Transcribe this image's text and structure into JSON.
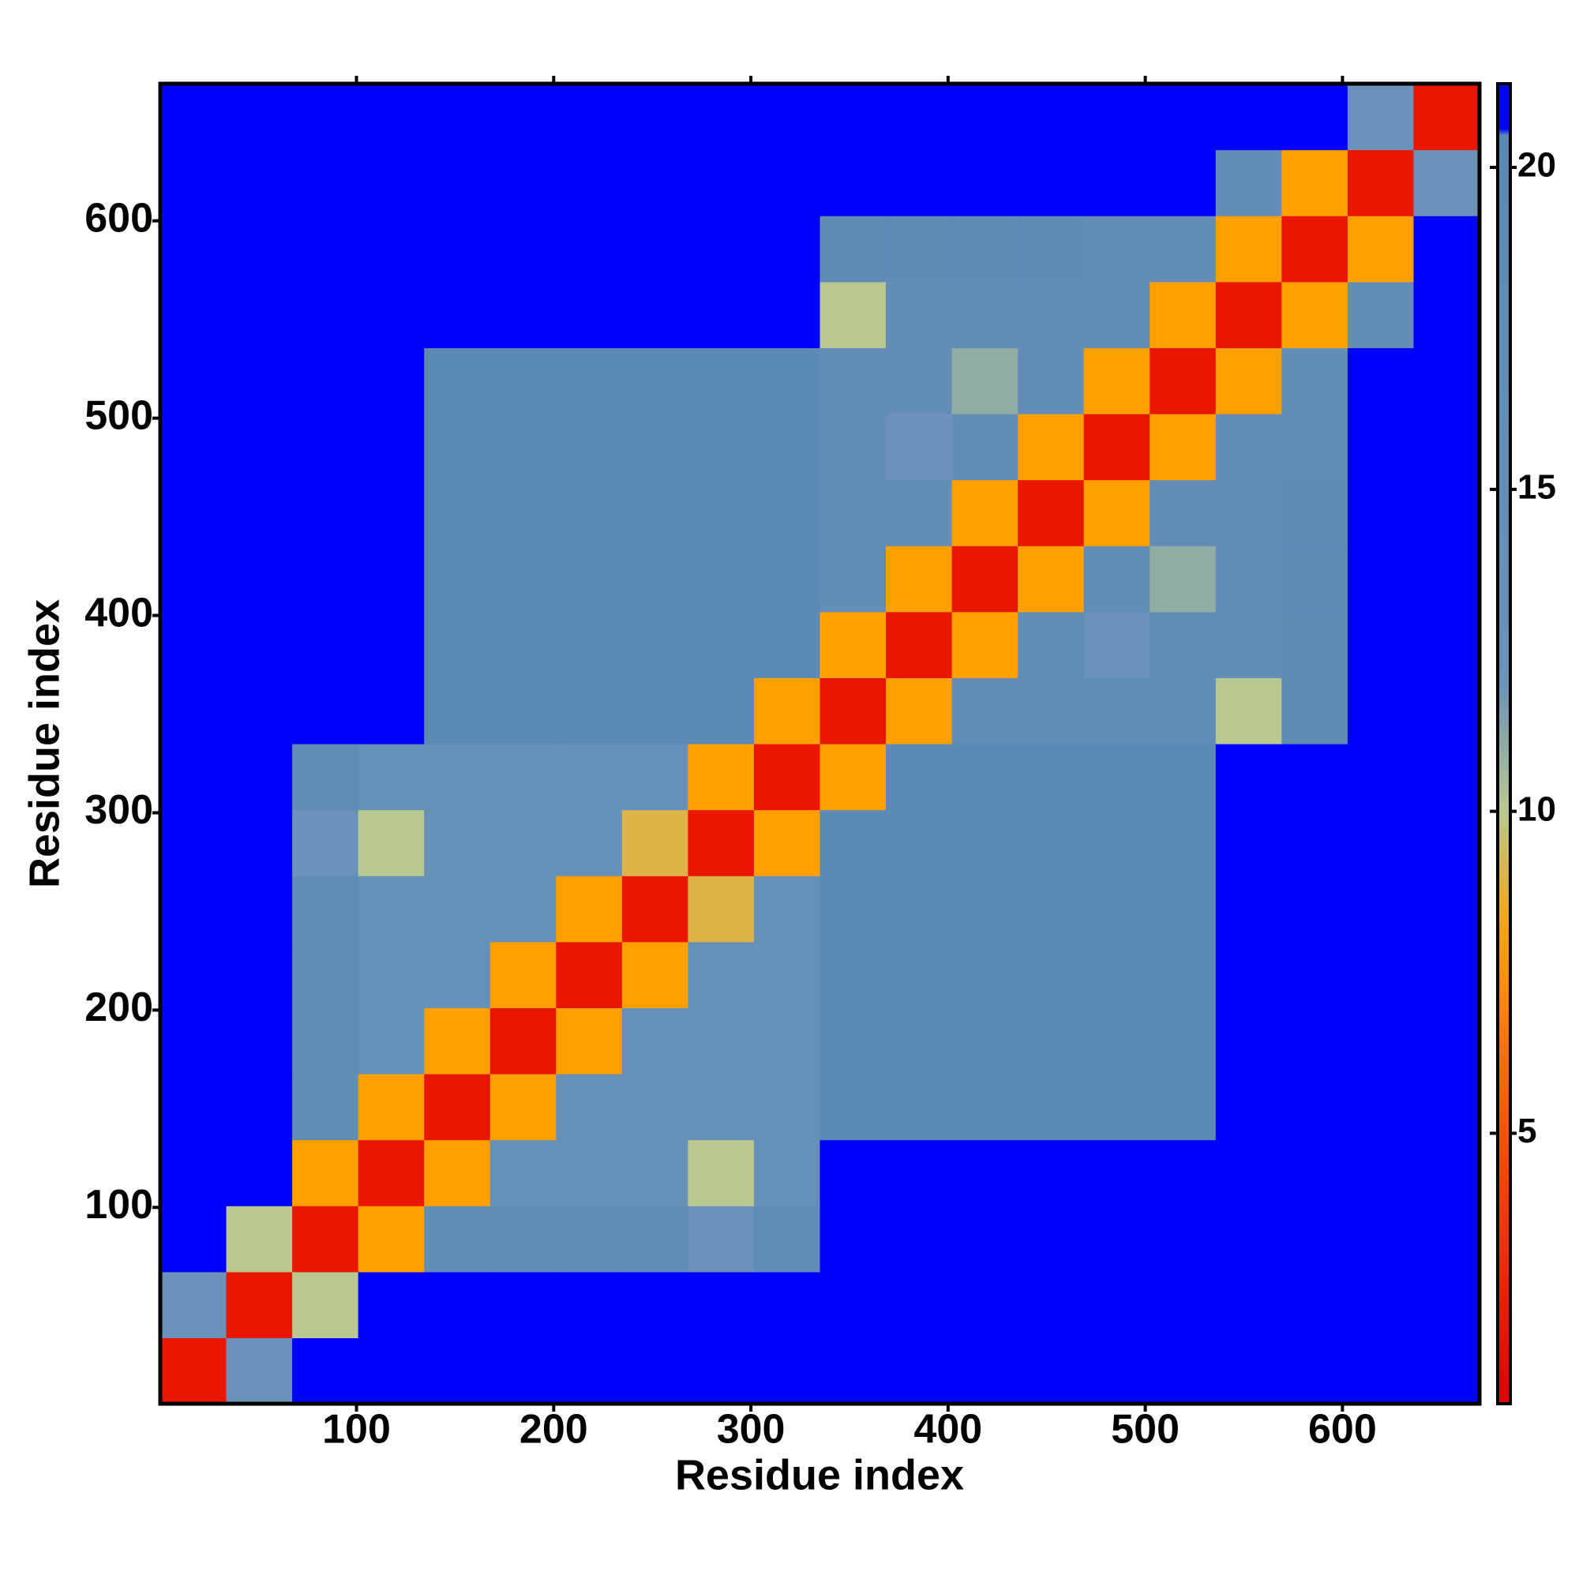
{
  "chart_data": {
    "type": "heatmap",
    "xlabel": "Residue index",
    "ylabel": "Residue index",
    "xlim": [
      0.5,
      669.5
    ],
    "ylim": [
      0.5,
      669.5
    ],
    "xticks": [
      100,
      200,
      300,
      400,
      500,
      600
    ],
    "yticks": [
      100,
      200,
      300,
      400,
      500,
      600
    ],
    "zlim": [
      0.8,
      21.3
    ],
    "zticks": [
      5,
      10,
      15,
      20
    ],
    "colorscale": [
      {
        "value": 0.8,
        "color": "#e00000"
      },
      {
        "value": 5,
        "color": "#ff5000"
      },
      {
        "value": 8,
        "color": "#ffa000"
      },
      {
        "value": 10,
        "color": "#b8c890"
      },
      {
        "value": 12,
        "color": "#6b92b8"
      },
      {
        "value": 20.5,
        "color": "#5a88b4"
      },
      {
        "value": 20.6,
        "color": "#0000ff"
      }
    ],
    "z": [
      [
        2,
        12,
        21,
        21,
        21,
        21,
        21,
        21,
        21,
        21,
        21,
        21,
        21,
        21,
        21,
        21,
        21,
        21,
        21,
        21
      ],
      [
        12,
        2,
        10,
        21,
        21,
        21,
        21,
        21,
        21,
        21,
        21,
        21,
        21,
        21,
        21,
        21,
        21,
        21,
        21,
        21
      ],
      [
        21,
        10,
        2,
        8,
        17,
        17,
        17,
        17,
        12,
        17,
        21,
        21,
        21,
        21,
        21,
        21,
        21,
        21,
        21,
        21
      ],
      [
        21,
        21,
        8,
        2,
        8,
        14,
        14,
        14,
        10,
        14,
        21,
        21,
        21,
        21,
        21,
        21,
        21,
        21,
        21,
        21
      ],
      [
        21,
        21,
        17,
        8,
        2,
        8,
        14,
        14,
        14,
        14,
        19,
        19,
        19,
        19,
        19,
        19,
        21,
        21,
        21,
        21
      ],
      [
        21,
        21,
        17,
        14,
        8,
        2,
        8,
        14,
        14,
        14,
        19,
        19,
        19,
        19,
        19,
        19,
        21,
        21,
        21,
        21
      ],
      [
        21,
        21,
        17,
        14,
        14,
        8,
        2,
        8,
        14,
        14,
        19,
        19,
        19,
        19,
        19,
        19,
        21,
        21,
        21,
        21
      ],
      [
        21,
        21,
        17,
        14,
        14,
        14,
        8,
        2,
        9,
        14,
        19,
        19,
        19,
        19,
        19,
        19,
        21,
        21,
        21,
        21
      ],
      [
        21,
        21,
        12,
        10,
        14,
        14,
        14,
        9,
        2,
        8,
        19,
        19,
        19,
        19,
        19,
        19,
        21,
        21,
        21,
        21
      ],
      [
        21,
        21,
        17,
        14,
        14,
        14,
        14,
        14,
        8,
        2,
        8,
        19,
        19,
        19,
        19,
        19,
        21,
        21,
        21,
        21
      ],
      [
        21,
        21,
        21,
        21,
        19,
        19,
        19,
        19,
        19,
        8,
        2,
        8,
        16,
        16,
        16,
        16,
        10,
        18,
        21,
        21
      ],
      [
        21,
        21,
        21,
        21,
        19,
        19,
        19,
        19,
        19,
        19,
        8,
        2,
        8,
        16,
        12,
        16,
        16,
        18,
        21,
        21
      ],
      [
        21,
        21,
        21,
        21,
        19,
        19,
        19,
        19,
        19,
        19,
        16,
        8,
        2,
        8,
        16,
        11,
        16,
        18,
        21,
        21
      ],
      [
        21,
        21,
        21,
        21,
        19,
        19,
        19,
        19,
        19,
        19,
        16,
        16,
        8,
        2,
        8,
        16,
        16,
        18,
        21,
        21
      ],
      [
        21,
        21,
        21,
        21,
        19,
        19,
        19,
        19,
        19,
        19,
        16,
        12,
        16,
        8,
        2,
        8,
        16,
        16,
        21,
        21
      ],
      [
        21,
        21,
        21,
        21,
        19,
        19,
        19,
        19,
        19,
        19,
        16,
        16,
        11,
        16,
        8,
        2,
        8,
        16,
        21,
        21
      ],
      [
        21,
        21,
        21,
        21,
        21,
        21,
        21,
        21,
        21,
        21,
        10,
        16,
        16,
        16,
        16,
        8,
        2,
        8,
        16,
        21
      ],
      [
        21,
        21,
        21,
        21,
        21,
        21,
        21,
        21,
        21,
        21,
        18,
        18,
        18,
        18,
        16,
        16,
        8,
        2,
        8,
        21
      ],
      [
        21,
        21,
        21,
        21,
        21,
        21,
        21,
        21,
        21,
        21,
        21,
        21,
        21,
        21,
        21,
        21,
        16,
        8,
        2,
        12
      ],
      [
        21,
        21,
        21,
        21,
        21,
        21,
        21,
        21,
        21,
        21,
        21,
        21,
        21,
        21,
        21,
        21,
        21,
        21,
        12,
        2
      ]
    ]
  }
}
